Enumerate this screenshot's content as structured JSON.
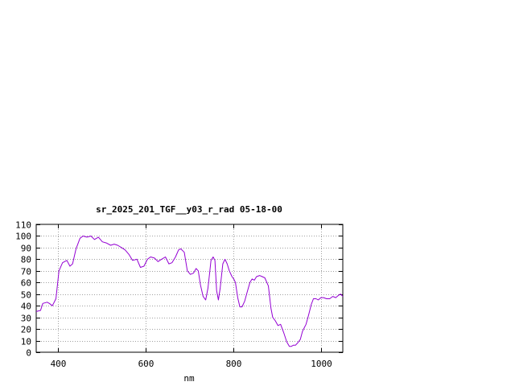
{
  "chart_data": {
    "type": "line",
    "title": "sr_2025_201_TGF__y03_r_rad 05-18-00",
    "xlabel": "nm",
    "ylabel": "",
    "xlim": [
      350,
      1050
    ],
    "ylim": [
      0,
      110
    ],
    "xticks": [
      "400",
      "600",
      "800",
      "1000"
    ],
    "yticks": [
      "0",
      "10",
      "20",
      "30",
      "40",
      "50",
      "60",
      "70",
      "80",
      "90",
      "100",
      "110"
    ],
    "xtick_values": [
      400,
      600,
      800,
      1000
    ],
    "ytick_values": [
      0,
      10,
      20,
      30,
      40,
      50,
      60,
      70,
      80,
      90,
      100,
      110
    ],
    "grid": true,
    "colors": {
      "series": "#9400d3",
      "grid": "#a0a0a0",
      "axis": "#000000"
    },
    "series": [
      {
        "x": [
          350,
          360,
          365,
          375,
          380,
          387,
          395,
          402,
          410,
          420,
          427,
          433,
          441,
          450,
          457,
          466,
          475,
          483,
          492,
          501,
          510,
          520,
          528,
          536,
          545,
          553,
          562,
          570,
          580,
          588,
          596,
          604,
          611,
          620,
          628,
          636,
          645,
          653,
          660,
          668,
          675,
          680,
          688,
          695,
          702,
          709,
          715,
          720,
          725,
          731,
          737,
          742,
          746,
          749,
          754,
          758,
          762,
          766,
          770,
          776,
          781,
          786,
          791,
          797,
          801,
          805,
          810,
          815,
          820,
          826,
          832,
          838,
          843,
          848,
          853,
          860,
          866,
          872,
          880,
          886,
          890,
          896,
          902,
          908,
          915,
          922,
          928,
          932,
          937,
          942,
          947,
          953,
          958,
          962,
          966,
          972,
          978,
          983,
          989,
          994,
          1000,
          1006,
          1013,
          1020,
          1027,
          1034,
          1040,
          1045,
          1050
        ],
        "y": [
          35,
          36,
          42,
          43,
          42,
          40,
          46,
          70,
          77,
          79,
          74,
          76,
          89,
          98,
          100,
          99,
          100,
          97,
          99,
          95,
          94,
          92,
          93,
          92,
          90,
          88,
          84,
          79,
          80,
          73,
          74,
          80,
          82,
          81,
          78,
          80,
          82,
          76,
          77,
          82,
          88,
          89,
          86,
          70,
          67,
          68,
          72,
          70,
          58,
          48,
          45,
          55,
          68,
          79,
          82,
          79,
          53,
          45,
          55,
          76,
          80,
          76,
          70,
          65,
          63,
          60,
          47,
          39,
          39,
          44,
          52,
          60,
          63,
          62,
          65,
          66,
          65,
          64,
          57,
          38,
          30,
          27,
          23,
          24,
          17,
          9,
          5,
          5,
          6,
          6,
          8,
          11,
          18,
          21,
          24,
          32,
          41,
          46,
          46,
          45,
          47,
          47,
          46,
          46,
          48,
          47,
          49,
          50,
          48
        ]
      }
    ]
  }
}
